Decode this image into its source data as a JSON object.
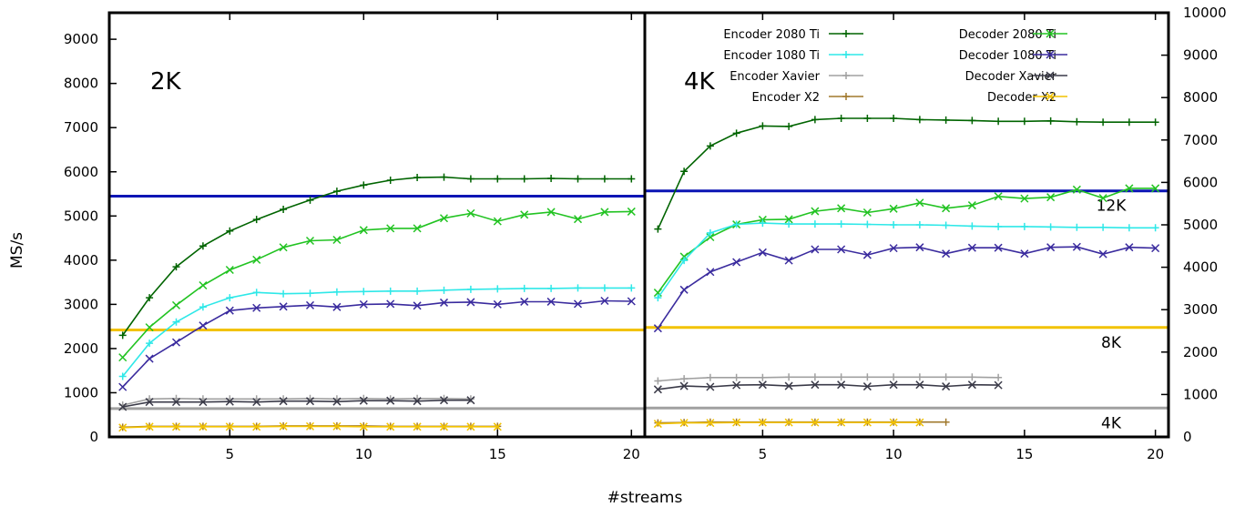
{
  "chart_data": {
    "type": "line",
    "ylabel": "MS/s",
    "xlabel": "#streams",
    "grid": false,
    "legend_position": "top-right",
    "panels": [
      {
        "label": "2K",
        "xlim": [
          0.5,
          20.5
        ],
        "ylim": [
          0,
          9600
        ],
        "xticks": [
          5,
          10,
          15,
          20
        ],
        "yticks": [
          0,
          1000,
          2000,
          3000,
          4000,
          5000,
          6000,
          7000,
          8000,
          9000
        ],
        "series": [
          {
            "name": "Encoder 2080 Ti",
            "color": "#006400",
            "marker": "plus",
            "x": [
              1,
              2,
              3,
              4,
              5,
              6,
              7,
              8,
              9,
              10,
              11,
              12,
              13,
              14,
              15,
              16,
              17,
              18,
              19,
              20
            ],
            "y": [
              2300,
              3150,
              3850,
              4320,
              4660,
              4920,
              5150,
              5360,
              5560,
              5700,
              5810,
              5870,
              5880,
              5840,
              5840,
              5840,
              5850,
              5840,
              5840,
              5840
            ]
          },
          {
            "name": "Decoder 2080 Ti",
            "color": "#22c322",
            "marker": "cross",
            "x": [
              1,
              2,
              3,
              4,
              5,
              6,
              7,
              8,
              9,
              10,
              11,
              12,
              13,
              14,
              15,
              16,
              17,
              18,
              19,
              20
            ],
            "y": [
              1800,
              2480,
              2980,
              3430,
              3780,
              4010,
              4290,
              4440,
              4460,
              4680,
              4720,
              4720,
              4950,
              5060,
              4880,
              5030,
              5090,
              4930,
              5090,
              5100
            ]
          },
          {
            "name": "Encoder 1080 Ti",
            "color": "#2ee8e8",
            "marker": "plus",
            "x": [
              1,
              2,
              3,
              4,
              5,
              6,
              7,
              8,
              9,
              10,
              11,
              12,
              13,
              14,
              15,
              16,
              17,
              18,
              19,
              20
            ],
            "y": [
              1370,
              2120,
              2600,
              2940,
              3150,
              3270,
              3240,
              3250,
              3280,
              3290,
              3300,
              3300,
              3320,
              3340,
              3350,
              3360,
              3360,
              3370,
              3370,
              3370
            ]
          },
          {
            "name": "Decoder 1080 Ti",
            "color": "#3a2b9e",
            "marker": "cross",
            "x": [
              1,
              2,
              3,
              4,
              5,
              6,
              7,
              8,
              9,
              10,
              11,
              12,
              13,
              14,
              15,
              16,
              17,
              18,
              19,
              20
            ],
            "y": [
              1130,
              1770,
              2140,
              2520,
              2860,
              2920,
              2950,
              2980,
              2940,
              3000,
              3010,
              2970,
              3040,
              3050,
              3000,
              3060,
              3060,
              3010,
              3080,
              3070
            ]
          },
          {
            "name": "Encoder Xavier",
            "color": "#a0a0a0",
            "marker": "plus",
            "x": [
              1,
              2,
              3,
              4,
              5,
              6,
              7,
              8,
              9,
              10,
              11,
              12,
              13,
              14
            ],
            "y": [
              720,
              860,
              870,
              860,
              860,
              860,
              860,
              870,
              860,
              870,
              860,
              870,
              870,
              860
            ]
          },
          {
            "name": "Decoder Xavier",
            "color": "#3a3a48",
            "marker": "cross",
            "x": [
              1,
              2,
              3,
              4,
              5,
              6,
              7,
              8,
              9,
              10,
              11,
              12,
              13,
              14
            ],
            "y": [
              680,
              790,
              790,
              790,
              800,
              790,
              810,
              810,
              800,
              820,
              820,
              810,
              830,
              830
            ]
          },
          {
            "name": "Encoder X2",
            "color": "#a0782c",
            "marker": "plus",
            "x": [
              1,
              2,
              3,
              4,
              5,
              6,
              7,
              8,
              9,
              10,
              11,
              12,
              13,
              14,
              15
            ],
            "y": [
              220,
              240,
              240,
              240,
              240,
              240,
              250,
              250,
              250,
              250,
              240,
              240,
              240,
              240,
              240
            ]
          },
          {
            "name": "Decoder X2",
            "color": "#f2c200",
            "marker": "cross",
            "x": [
              1,
              2,
              3,
              4,
              5,
              6,
              7,
              8,
              9,
              10,
              11,
              12,
              13,
              14,
              15
            ],
            "y": [
              210,
              230,
              230,
              230,
              230,
              230,
              240,
              240,
              240,
              230,
              230,
              230,
              230,
              230,
              230
            ]
          }
        ],
        "reference_lines": [
          {
            "y": 5450,
            "color": "#0a14b4"
          },
          {
            "y": 2420,
            "color": "#f2c200"
          },
          {
            "y": 640,
            "color": "#a0a0a0"
          }
        ]
      },
      {
        "label": "4K",
        "xlim": [
          0.5,
          20.5
        ],
        "ylim": [
          0,
          10000
        ],
        "xticks": [
          5,
          10,
          15,
          20
        ],
        "yticks": [
          0,
          1000,
          2000,
          3000,
          4000,
          5000,
          6000,
          7000,
          8000,
          9000,
          10000
        ],
        "series": [
          {
            "name": "Encoder 2080 Ti",
            "color": "#006400",
            "marker": "plus",
            "x": [
              1,
              2,
              3,
              4,
              5,
              6,
              7,
              8,
              9,
              10,
              11,
              12,
              13,
              14,
              15,
              16,
              17,
              18,
              19,
              20
            ],
            "y": [
              4900,
              6260,
              6860,
              7160,
              7330,
              7320,
              7480,
              7510,
              7510,
              7510,
              7480,
              7470,
              7460,
              7440,
              7440,
              7450,
              7430,
              7420,
              7420,
              7420
            ]
          },
          {
            "name": "Decoder 2080 Ti",
            "color": "#22c322",
            "marker": "cross",
            "x": [
              1,
              2,
              3,
              4,
              5,
              6,
              7,
              8,
              9,
              10,
              11,
              12,
              13,
              14,
              15,
              16,
              17,
              18,
              19,
              20
            ],
            "y": [
              3400,
              4250,
              4710,
              5010,
              5120,
              5130,
              5320,
              5390,
              5290,
              5380,
              5520,
              5390,
              5460,
              5670,
              5620,
              5650,
              5830,
              5630,
              5860,
              5860
            ]
          },
          {
            "name": "Encoder 1080 Ti",
            "color": "#2ee8e8",
            "marker": "plus",
            "x": [
              1,
              2,
              3,
              4,
              5,
              6,
              7,
              8,
              9,
              10,
              11,
              12,
              13,
              14,
              15,
              16,
              17,
              18,
              19,
              20
            ],
            "y": [
              3280,
              4160,
              4810,
              5010,
              5040,
              5020,
              5020,
              5020,
              5010,
              5000,
              5000,
              4990,
              4970,
              4960,
              4960,
              4950,
              4940,
              4940,
              4930,
              4930
            ]
          },
          {
            "name": "Decoder 1080 Ti",
            "color": "#3a2b9e",
            "marker": "cross",
            "x": [
              1,
              2,
              3,
              4,
              5,
              6,
              7,
              8,
              9,
              10,
              11,
              12,
              13,
              14,
              15,
              16,
              17,
              18,
              19,
              20
            ],
            "y": [
              2560,
              3470,
              3890,
              4120,
              4350,
              4160,
              4420,
              4420,
              4290,
              4450,
              4470,
              4320,
              4460,
              4460,
              4320,
              4470,
              4480,
              4310,
              4470,
              4450
            ]
          },
          {
            "name": "Encoder Xavier",
            "color": "#a0a0a0",
            "marker": "plus",
            "x": [
              1,
              2,
              3,
              4,
              5,
              6,
              7,
              8,
              9,
              10,
              11,
              12,
              13,
              14
            ],
            "y": [
              1320,
              1370,
              1400,
              1400,
              1400,
              1410,
              1410,
              1410,
              1410,
              1410,
              1410,
              1410,
              1410,
              1400
            ]
          },
          {
            "name": "Decoder Xavier",
            "color": "#3a3a48",
            "marker": "cross",
            "x": [
              1,
              2,
              3,
              4,
              5,
              6,
              7,
              8,
              9,
              10,
              11,
              12,
              13,
              14
            ],
            "y": [
              1120,
              1200,
              1180,
              1220,
              1230,
              1200,
              1230,
              1230,
              1190,
              1230,
              1230,
              1190,
              1230,
              1220
            ]
          },
          {
            "name": "Encoder X2",
            "color": "#a0782c",
            "marker": "plus",
            "x": [
              1,
              2,
              3,
              4,
              5,
              6,
              7,
              8,
              9,
              10,
              11,
              12
            ],
            "y": [
              330,
              340,
              350,
              350,
              350,
              350,
              350,
              350,
              350,
              350,
              350,
              350
            ]
          },
          {
            "name": "Decoder X2",
            "color": "#f2c200",
            "marker": "cross",
            "x": [
              1,
              2,
              3,
              4,
              5,
              6,
              7,
              8,
              9,
              10,
              11
            ],
            "y": [
              310,
              330,
              330,
              340,
              340,
              340,
              340,
              340,
              340,
              340,
              340
            ]
          }
        ],
        "reference_lines": [
          {
            "y": 5800,
            "color": "#0a14b4",
            "label": "12K"
          },
          {
            "y": 2580,
            "color": "#f2c200",
            "label": "8K"
          },
          {
            "y": 680,
            "color": "#a0a0a0",
            "label": "4K"
          }
        ]
      }
    ]
  }
}
